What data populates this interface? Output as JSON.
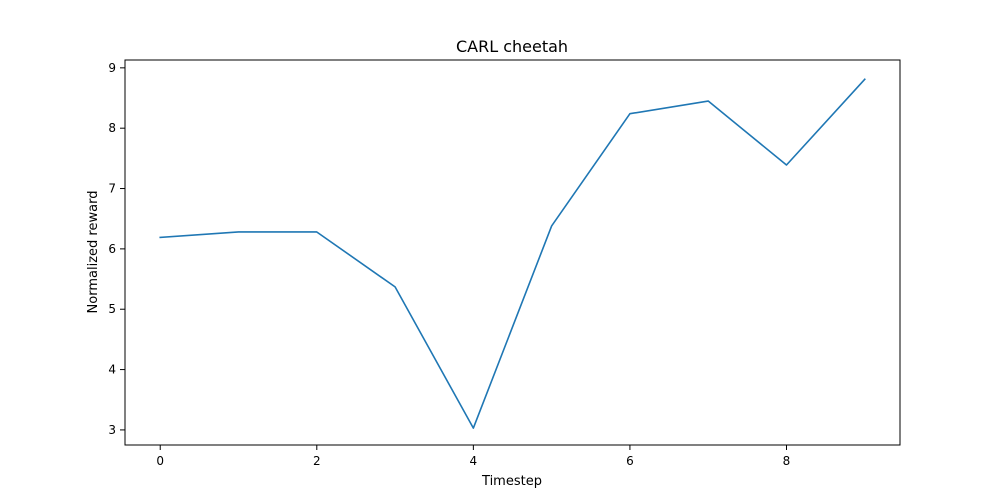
{
  "chart_data": {
    "type": "line",
    "title": "CARL cheetah",
    "xlabel": "Timestep",
    "ylabel": "Normalized reward",
    "xlim": [
      -0.45,
      9.45
    ],
    "ylim": [
      2.75,
      9.13
    ],
    "xticks": [
      0,
      2,
      4,
      6,
      8
    ],
    "yticks": [
      3,
      4,
      5,
      6,
      7,
      8,
      9
    ],
    "grid": false,
    "series": [
      {
        "color": "#1f77b4",
        "x": [
          0,
          1,
          2,
          3,
          4,
          5,
          6,
          7,
          8,
          9
        ],
        "y": [
          6.19,
          6.28,
          6.28,
          5.37,
          3.03,
          6.38,
          8.24,
          8.45,
          7.39,
          8.81
        ]
      }
    ]
  }
}
